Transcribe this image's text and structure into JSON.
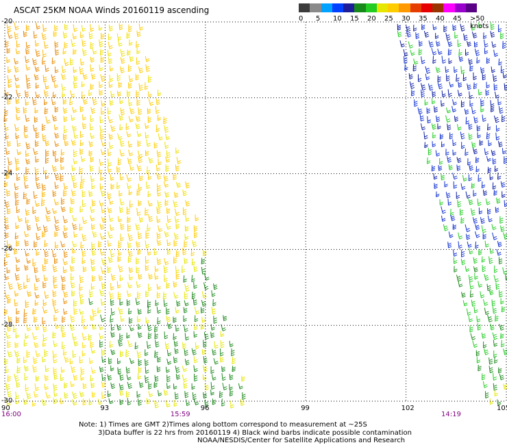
{
  "title": "ASCAT 25KM NOAA Winds 20160119 ascending",
  "legend": {
    "colors": [
      "#3c3c3c",
      "#8a8a8a",
      "#00a2ff",
      "#0040ff",
      "#1d1d9a",
      "#17881a",
      "#22cc22",
      "#e6e600",
      "#ffcc00",
      "#ff9900",
      "#e63d00",
      "#e60000",
      "#993300",
      "#ff00ff",
      "#9900cc",
      "#5a0087"
    ],
    "labels": [
      "0",
      "5",
      "10",
      "15",
      "20",
      "25",
      "30",
      "35",
      "40",
      "45",
      ">50 knots"
    ],
    "label_values": [
      0,
      5,
      10,
      15,
      20,
      25,
      30,
      35,
      40,
      45,
      50
    ]
  },
  "map": {
    "lat_range": [
      -30,
      -20
    ],
    "lon_range": [
      90,
      105
    ],
    "lat_ticks": [
      "-20",
      "-22",
      "-24",
      "-26",
      "-28",
      "-30"
    ],
    "lat_values": [
      -20,
      -22,
      -24,
      -26,
      -28,
      -30
    ],
    "lon_ticks": [
      "90",
      "93",
      "96",
      "99",
      "102",
      "105"
    ],
    "lon_values": [
      90,
      93,
      96,
      99,
      102,
      105
    ],
    "grid": true,
    "time_labels": [
      {
        "text": "16:00",
        "lon": 90
      },
      {
        "text": "15:59",
        "lon": 95.2
      },
      {
        "text": "14:19",
        "lon": 103.3
      }
    ],
    "swaths": [
      {
        "name": "west",
        "top": [
          90,
          94.0
        ],
        "bottom": [
          90,
          97.3
        ]
      },
      {
        "name": "east",
        "top": [
          101.6,
          105
        ],
        "bottom": [
          104.4,
          105
        ]
      }
    ]
  },
  "notes": [
    "Note: 1) Times are GMT 2)Times along bottom correspond to measurement at ~25S",
    "3)Data buffer is 22 hrs from 20160119 4) Black wind barbs indicate possible contamination",
    "NOAA/NESDIS/Center for Satellite Applications and Research"
  ]
}
